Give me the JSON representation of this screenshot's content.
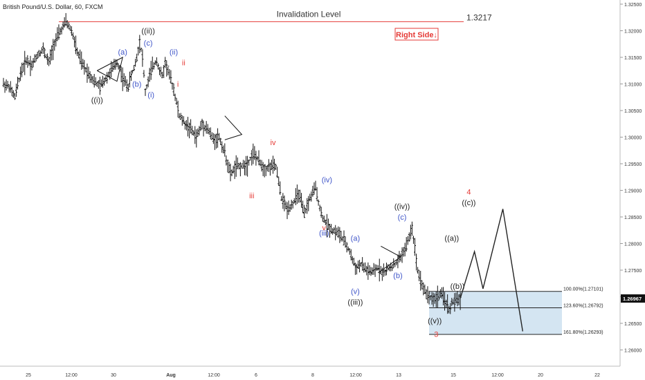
{
  "symbol": "British Pound/U.S. Dollar, 60, FXCM",
  "colors": {
    "candle": "#111111",
    "red": "#e53935",
    "blue": "#3f55c9",
    "black_label": "#222222",
    "zone": "#cde0f0",
    "grid": "#eeeeee"
  },
  "chart_data": {
    "type": "ohlc",
    "ylim": [
      1.2585,
      1.3275
    ],
    "y_ticks": [
      "1.32500",
      "1.32000",
      "1.31500",
      "1.31000",
      "1.30500",
      "1.30000",
      "1.29500",
      "1.29000",
      "1.28500",
      "1.28000",
      "1.27500",
      "1.27000",
      "1.26500",
      "1.26000"
    ],
    "x_tick_labels": [
      "25",
      "12:00",
      "30",
      "Aug",
      "12:00",
      "6",
      "8",
      "12:00",
      "13",
      "15",
      "12:00",
      "20",
      "22"
    ],
    "current_price": "1.26967",
    "price_path": [
      [
        0,
        1.31
      ],
      [
        2,
        1.3095
      ],
      [
        4,
        1.3075
      ],
      [
        6,
        1.312
      ],
      [
        8,
        1.3145
      ],
      [
        10,
        1.3135
      ],
      [
        12,
        1.3155
      ],
      [
        14,
        1.3165
      ],
      [
        16,
        1.314
      ],
      [
        18,
        1.3178
      ],
      [
        20,
        1.3198
      ],
      [
        22,
        1.3217
      ],
      [
        24,
        1.32
      ],
      [
        26,
        1.316
      ],
      [
        28,
        1.3135
      ],
      [
        30,
        1.312
      ],
      [
        32,
        1.3105
      ],
      [
        34,
        1.3095
      ],
      [
        36,
        1.311
      ],
      [
        38,
        1.3125
      ],
      [
        40,
        1.314
      ],
      [
        41,
        1.313
      ],
      [
        42,
        1.311
      ],
      [
        44,
        1.3095
      ],
      [
        45,
        1.3115
      ],
      [
        46,
        1.313
      ],
      [
        47,
        1.315
      ],
      [
        48,
        1.318
      ],
      [
        49,
        1.315
      ],
      [
        50,
        1.3085
      ],
      [
        51,
        1.3105
      ],
      [
        52,
        1.3125
      ],
      [
        53,
        1.3135
      ],
      [
        54,
        1.3145
      ],
      [
        55,
        1.3125
      ],
      [
        56,
        1.3115
      ],
      [
        57,
        1.314
      ],
      [
        58,
        1.3125
      ],
      [
        60,
        1.309
      ],
      [
        62,
        1.304
      ],
      [
        64,
        1.3025
      ],
      [
        66,
        1.3015
      ],
      [
        68,
        1.3
      ],
      [
        70,
        1.3025
      ],
      [
        72,
        1.3015
      ],
      [
        74,
        1.2995
      ],
      [
        76,
        1.3
      ],
      [
        78,
        1.297
      ],
      [
        80,
        1.293
      ],
      [
        82,
        1.2945
      ],
      [
        84,
        1.2945
      ],
      [
        86,
        1.295
      ],
      [
        88,
        1.297
      ],
      [
        90,
        1.2955
      ],
      [
        92,
        1.294
      ],
      [
        94,
        1.2945
      ],
      [
        96,
        1.2945
      ],
      [
        98,
        1.2885
      ],
      [
        100,
        1.2865
      ],
      [
        102,
        1.2875
      ],
      [
        104,
        1.2895
      ],
      [
        106,
        1.2855
      ],
      [
        108,
        1.2885
      ],
      [
        110,
        1.2905
      ],
      [
        112,
        1.2855
      ],
      [
        114,
        1.2835
      ],
      [
        116,
        1.2825
      ],
      [
        118,
        1.282
      ],
      [
        120,
        1.2805
      ],
      [
        122,
        1.2785
      ],
      [
        124,
        1.2755
      ],
      [
        126,
        1.276
      ],
      [
        128,
        1.275
      ],
      [
        130,
        1.2745
      ],
      [
        132,
        1.2755
      ],
      [
        134,
        1.2745
      ],
      [
        136,
        1.2755
      ],
      [
        138,
        1.276
      ],
      [
        140,
        1.2775
      ],
      [
        142,
        1.2795
      ],
      [
        144,
        1.283
      ],
      [
        146,
        1.275
      ],
      [
        148,
        1.2715
      ],
      [
        150,
        1.27
      ],
      [
        152,
        1.2695
      ],
      [
        154,
        1.2705
      ],
      [
        156,
        1.269
      ],
      [
        157,
        1.2675
      ],
      [
        158,
        1.2688
      ],
      [
        160,
        1.2694
      ],
      [
        161,
        1.2697
      ]
    ],
    "projection_path": [
      [
        161,
        1.2697
      ],
      [
        166,
        1.2785
      ],
      [
        169,
        1.2715
      ],
      [
        176,
        1.2865
      ],
      [
        183,
        1.2635
      ]
    ],
    "invalidation_level": {
      "label": "Invalidation Level",
      "value": "1.3217"
    },
    "note": "Right Side↓",
    "fib_levels": [
      {
        "label": "100.00%(1.27101)",
        "value": 1.27101
      },
      {
        "label": "123.60%(1.26792)",
        "value": 1.26792
      },
      {
        "label": "161.80%(1.26293)",
        "value": 1.26293
      }
    ],
    "wave_labels": [
      {
        "text": "((i))",
        "x": 33,
        "y": 1.3065,
        "color": "black"
      },
      {
        "text": "(a)",
        "x": 42,
        "y": 1.3155,
        "color": "blue"
      },
      {
        "text": "(b)",
        "x": 47,
        "y": 1.3095,
        "color": "blue"
      },
      {
        "text": "((ii))",
        "x": 51,
        "y": 1.3195,
        "color": "black"
      },
      {
        "text": "(c)",
        "x": 51,
        "y": 1.3172,
        "color": "blue"
      },
      {
        "text": "(i)",
        "x": 52,
        "y": 1.3075,
        "color": "blue"
      },
      {
        "text": "(ii)",
        "x": 60,
        "y": 1.3155,
        "color": "blue"
      },
      {
        "text": "ii",
        "x": 63.5,
        "y": 1.3135,
        "color": "red"
      },
      {
        "text": "i",
        "x": 61.5,
        "y": 1.3095,
        "color": "red"
      },
      {
        "text": "iii",
        "x": 87.5,
        "y": 1.2885,
        "color": "red"
      },
      {
        "text": "iv",
        "x": 95,
        "y": 1.2985,
        "color": "red"
      },
      {
        "text": "(iv)",
        "x": 114,
        "y": 1.2915,
        "color": "blue"
      },
      {
        "text": "v",
        "x": 113,
        "y": 1.2825,
        "color": "red"
      },
      {
        "text": "(iii)",
        "x": 113,
        "y": 1.2815,
        "color": "blue"
      },
      {
        "text": "(a)",
        "x": 124,
        "y": 1.2805,
        "color": "blue"
      },
      {
        "text": "(v)",
        "x": 124,
        "y": 1.2705,
        "color": "blue"
      },
      {
        "text": "((iii))",
        "x": 124,
        "y": 1.2685,
        "color": "black"
      },
      {
        "text": "((iv))",
        "x": 140.5,
        "y": 1.2865,
        "color": "black"
      },
      {
        "text": "(c)",
        "x": 140.5,
        "y": 1.2845,
        "color": "blue"
      },
      {
        "text": "(b)",
        "x": 139,
        "y": 1.2735,
        "color": "blue"
      },
      {
        "text": "((v))",
        "x": 152,
        "y": 1.265,
        "color": "black"
      },
      {
        "text": "3",
        "x": 152.5,
        "y": 1.2625,
        "color": "red"
      },
      {
        "text": "((a))",
        "x": 158,
        "y": 1.2805,
        "color": "black"
      },
      {
        "text": "((b))",
        "x": 160,
        "y": 1.2715,
        "color": "black"
      },
      {
        "text": "4",
        "x": 164,
        "y": 1.2892,
        "color": "red"
      },
      {
        "text": "((c))",
        "x": 164,
        "y": 1.2872,
        "color": "black"
      }
    ],
    "triangles": [
      [
        [
          33,
          1.3125
        ],
        [
          42,
          1.315
        ],
        [
          40,
          1.3105
        ],
        [
          33,
          1.3125
        ]
      ],
      [
        [
          78,
          1.304
        ],
        [
          84,
          1.3005
        ],
        [
          78,
          1.2995
        ]
      ],
      [
        [
          133,
          1.2795
        ],
        [
          140,
          1.2775
        ],
        [
          132,
          1.2745
        ]
      ]
    ]
  }
}
